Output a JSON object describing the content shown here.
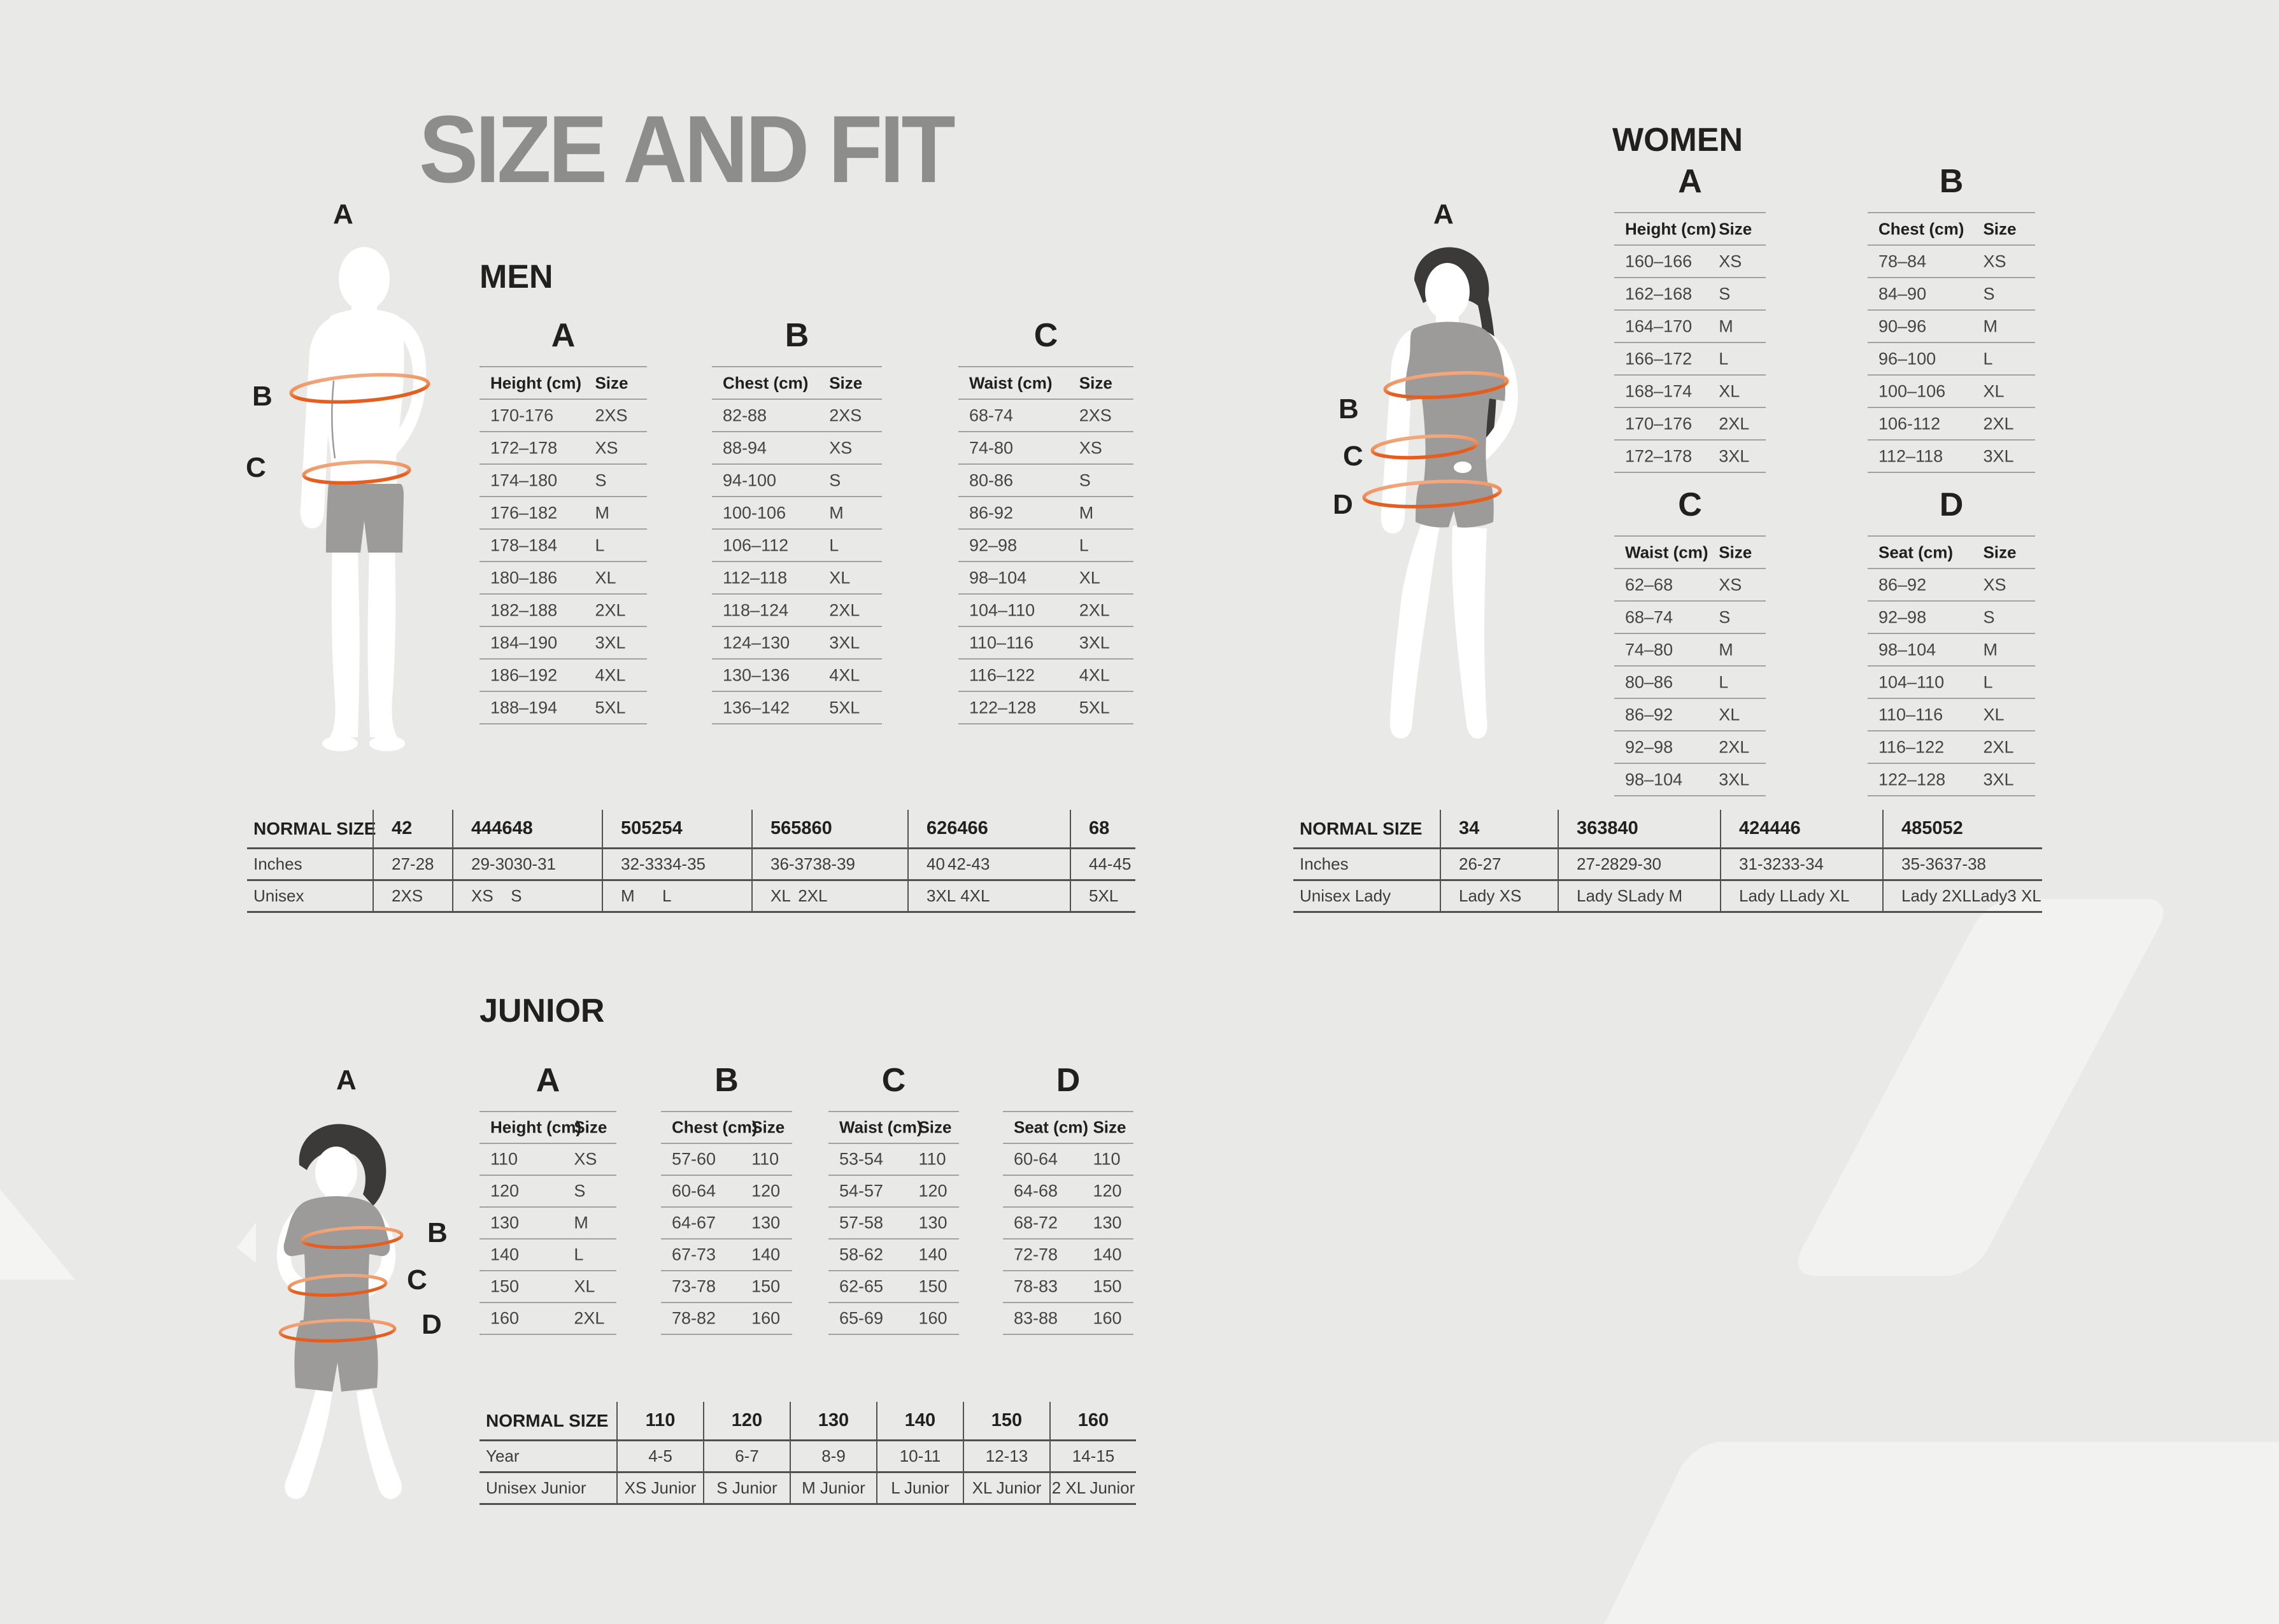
{
  "page": {
    "title": "SIZE AND FIT",
    "colors": {
      "background": "#e9e9e8",
      "watermark": "#f2f2f1",
      "accent_orange": "#e55e1f",
      "accent_orange_light": "#f2a87e",
      "title_gray": "#8d8d8c",
      "text_dark": "#21201f",
      "garment_gray": "#9c9b9a",
      "hair_dark": "#3b3a38",
      "silhouette_white": "#ffffff"
    }
  },
  "men": {
    "heading": "MEN",
    "figure_labels": [
      "A",
      "B",
      "C"
    ],
    "tables": [
      {
        "letter": "A",
        "columns": [
          "Height (cm)",
          "Size"
        ],
        "rows": [
          [
            "170-176",
            "2XS"
          ],
          [
            "172–178",
            "XS"
          ],
          [
            "174–180",
            "S"
          ],
          [
            "176–182",
            "M"
          ],
          [
            "178–184",
            "L"
          ],
          [
            "180–186",
            "XL"
          ],
          [
            "182–188",
            "2XL"
          ],
          [
            "184–190",
            "3XL"
          ],
          [
            "186–192",
            "4XL"
          ],
          [
            "188–194",
            "5XL"
          ]
        ]
      },
      {
        "letter": "B",
        "columns": [
          "Chest (cm)",
          "Size"
        ],
        "rows": [
          [
            "82-88",
            "2XS"
          ],
          [
            "88-94",
            "XS"
          ],
          [
            "94-100",
            "S"
          ],
          [
            "100-106",
            "M"
          ],
          [
            "106–112",
            "L"
          ],
          [
            "112–118",
            "XL"
          ],
          [
            "118–124",
            "2XL"
          ],
          [
            "124–130",
            "3XL"
          ],
          [
            "130–136",
            "4XL"
          ],
          [
            "136–142",
            "5XL"
          ]
        ]
      },
      {
        "letter": "C",
        "columns": [
          "Waist (cm)",
          "Size"
        ],
        "rows": [
          [
            "68-74",
            "2XS"
          ],
          [
            "74-80",
            "XS"
          ],
          [
            "80-86",
            "S"
          ],
          [
            "86-92",
            "M"
          ],
          [
            "92–98",
            "L"
          ],
          [
            "98–104",
            "XL"
          ],
          [
            "104–110",
            "2XL"
          ],
          [
            "110–116",
            "3XL"
          ],
          [
            "116–122",
            "4XL"
          ],
          [
            "122–128",
            "5XL"
          ]
        ]
      }
    ],
    "normal_size": {
      "row_labels": [
        "NORMAL SIZE",
        "Inches",
        "Unisex"
      ],
      "columns": [
        {
          "header": [
            "42"
          ],
          "row1": [
            "27-28"
          ],
          "row2": [
            "2XS"
          ]
        },
        {
          "header": [
            "44",
            "46",
            "48"
          ],
          "row1": [
            "29-30",
            "30-31"
          ],
          "row2": [
            "XS",
            "S"
          ]
        },
        {
          "header": [
            "50",
            "52",
            "54"
          ],
          "row1": [
            "32-33",
            "34-35"
          ],
          "row2": [
            "M",
            "L"
          ]
        },
        {
          "header": [
            "56",
            "58",
            "60"
          ],
          "row1": [
            "36-37",
            "38-39"
          ],
          "row2": [
            "XL",
            "2XL"
          ]
        },
        {
          "header": [
            "62",
            "64",
            "66"
          ],
          "row1": [
            "40",
            "42-43"
          ],
          "row2": [
            "3XL",
            "4XL"
          ]
        },
        {
          "header": [
            "68"
          ],
          "row1": [
            "44-45"
          ],
          "row2": [
            "5XL"
          ]
        }
      ]
    }
  },
  "women": {
    "heading": "WOMEN",
    "figure_labels": [
      "A",
      "B",
      "C",
      "D"
    ],
    "tables": [
      {
        "letter": "A",
        "columns": [
          "Height (cm)",
          "Size"
        ],
        "rows": [
          [
            "160–166",
            "XS"
          ],
          [
            "162–168",
            "S"
          ],
          [
            "164–170",
            "M"
          ],
          [
            "166–172",
            "L"
          ],
          [
            "168–174",
            "XL"
          ],
          [
            "170–176",
            "2XL"
          ],
          [
            "172–178",
            "3XL"
          ]
        ]
      },
      {
        "letter": "B",
        "columns": [
          "Chest (cm)",
          "Size"
        ],
        "rows": [
          [
            "78–84",
            "XS"
          ],
          [
            "84–90",
            "S"
          ],
          [
            "90–96",
            "M"
          ],
          [
            "96–100",
            "L"
          ],
          [
            "100–106",
            "XL"
          ],
          [
            "106-112",
            "2XL"
          ],
          [
            "112–118",
            "3XL"
          ]
        ]
      },
      {
        "letter": "C",
        "columns": [
          "Waist (cm)",
          "Size"
        ],
        "rows": [
          [
            "62–68",
            "XS"
          ],
          [
            "68–74",
            "S"
          ],
          [
            "74–80",
            "M"
          ],
          [
            "80–86",
            "L"
          ],
          [
            "86–92",
            "XL"
          ],
          [
            "92–98",
            "2XL"
          ],
          [
            "98–104",
            "3XL"
          ]
        ]
      },
      {
        "letter": "D",
        "columns": [
          "Seat (cm)",
          "Size"
        ],
        "rows": [
          [
            "86–92",
            "XS"
          ],
          [
            "92–98",
            "S"
          ],
          [
            "98–104",
            "M"
          ],
          [
            "104–110",
            "L"
          ],
          [
            "110–116",
            "XL"
          ],
          [
            "116–122",
            "2XL"
          ],
          [
            "122–128",
            "3XL"
          ]
        ]
      }
    ],
    "normal_size": {
      "row_labels": [
        "NORMAL SIZE",
        "Inches",
        "Unisex Lady"
      ],
      "columns": [
        {
          "header": [
            "34"
          ],
          "row1": [
            "26-27"
          ],
          "row2": [
            "Lady XS"
          ]
        },
        {
          "header": [
            "36",
            "38",
            "40"
          ],
          "row1": [
            "27-28",
            "29-30"
          ],
          "row2": [
            "Lady S",
            "Lady M"
          ]
        },
        {
          "header": [
            "42",
            "44",
            "46"
          ],
          "row1": [
            "31-32",
            "33-34"
          ],
          "row2": [
            "Lady L",
            "Lady XL"
          ]
        },
        {
          "header": [
            "48",
            "50",
            "52"
          ],
          "row1": [
            "35-36",
            "37-38"
          ],
          "row2": [
            "Lady 2XL",
            "Lady3 XL"
          ]
        }
      ]
    }
  },
  "junior": {
    "heading": "JUNIOR",
    "figure_labels": [
      "A",
      "B",
      "C",
      "D"
    ],
    "tables": [
      {
        "letter": "A",
        "columns": [
          "Height (cm)",
          "Size"
        ],
        "rows": [
          [
            "110",
            "XS"
          ],
          [
            "120",
            "S"
          ],
          [
            "130",
            "M"
          ],
          [
            "140",
            "L"
          ],
          [
            "150",
            "XL"
          ],
          [
            "160",
            "2XL"
          ]
        ]
      },
      {
        "letter": "B",
        "columns": [
          "Chest (cm)",
          "Size"
        ],
        "rows": [
          [
            "57-60",
            "110"
          ],
          [
            "60-64",
            "120"
          ],
          [
            "64-67",
            "130"
          ],
          [
            "67-73",
            "140"
          ],
          [
            "73-78",
            "150"
          ],
          [
            "78-82",
            "160"
          ]
        ]
      },
      {
        "letter": "C",
        "columns": [
          "Waist (cm)",
          "Size"
        ],
        "rows": [
          [
            "53-54",
            "110"
          ],
          [
            "54-57",
            "120"
          ],
          [
            "57-58",
            "130"
          ],
          [
            "58-62",
            "140"
          ],
          [
            "62-65",
            "150"
          ],
          [
            "65-69",
            "160"
          ]
        ]
      },
      {
        "letter": "D",
        "columns": [
          "Seat (cm)",
          "Size"
        ],
        "rows": [
          [
            "60-64",
            "110"
          ],
          [
            "64-68",
            "120"
          ],
          [
            "68-72",
            "130"
          ],
          [
            "72-78",
            "140"
          ],
          [
            "78-83",
            "150"
          ],
          [
            "83-88",
            "160"
          ]
        ]
      }
    ],
    "normal_size": {
      "row_labels": [
        "NORMAL SIZE",
        "Year",
        "Unisex Junior"
      ],
      "columns": [
        {
          "header": [
            "110"
          ],
          "row1": [
            "4-5"
          ],
          "row2": [
            "XS Junior"
          ]
        },
        {
          "header": [
            "120"
          ],
          "row1": [
            "6-7"
          ],
          "row2": [
            "S Junior"
          ]
        },
        {
          "header": [
            "130"
          ],
          "row1": [
            "8-9"
          ],
          "row2": [
            "M Junior"
          ]
        },
        {
          "header": [
            "140"
          ],
          "row1": [
            "10-11"
          ],
          "row2": [
            "L Junior"
          ]
        },
        {
          "header": [
            "150"
          ],
          "row1": [
            "12-13"
          ],
          "row2": [
            "XL Junior"
          ]
        },
        {
          "header": [
            "160"
          ],
          "row1": [
            "14-15"
          ],
          "row2": [
            "2 XL Junior"
          ]
        }
      ]
    }
  }
}
